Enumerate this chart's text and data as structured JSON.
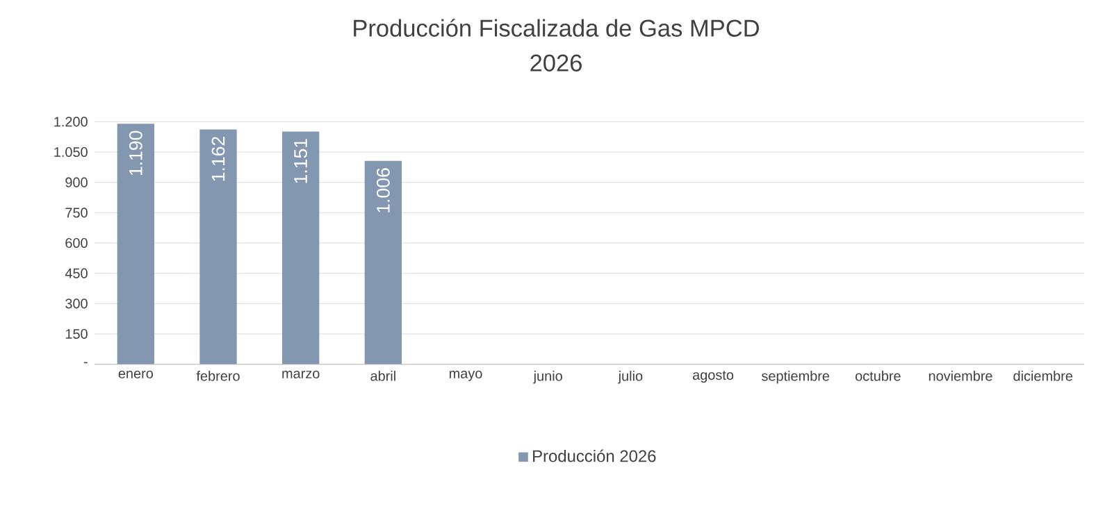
{
  "chart_data": {
    "type": "bar",
    "title": "Producción Fiscalizada de Gas MPCD",
    "subtitle": "2026",
    "categories": [
      "enero",
      "febrero",
      "marzo",
      "abril",
      "mayo",
      "junio",
      "julio",
      "agosto",
      "septiembre",
      "octubre",
      "noviembre",
      "diciembre"
    ],
    "series": [
      {
        "name": "Producción 2026",
        "color": "#8497b0",
        "values": [
          1190,
          1162,
          1151,
          1006,
          null,
          null,
          null,
          null,
          null,
          null,
          null,
          null
        ],
        "value_labels": [
          "1.190",
          "1.162",
          "1.151",
          "1.006",
          null,
          null,
          null,
          null,
          null,
          null,
          null,
          null
        ]
      }
    ],
    "ylim": [
      0,
      1200
    ],
    "yticks": [
      {
        "value": 0,
        "label": "-"
      },
      150,
      300,
      450,
      600,
      750,
      900,
      {
        "value": 1050,
        "label": "1.050"
      },
      {
        "value": 1200,
        "label": "1.200"
      }
    ],
    "grid": "y",
    "legend": "bottom"
  }
}
